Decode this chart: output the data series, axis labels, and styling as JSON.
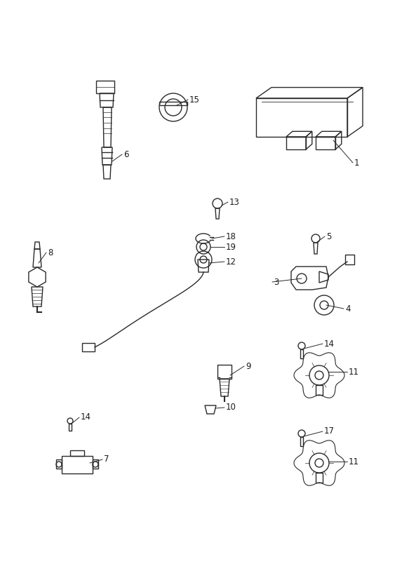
{
  "background_color": "#ffffff",
  "line_color": "#2a2a2a",
  "label_color": "#1a1a1a",
  "fig_width": 5.83,
  "fig_height": 8.24,
  "dpi": 100
}
